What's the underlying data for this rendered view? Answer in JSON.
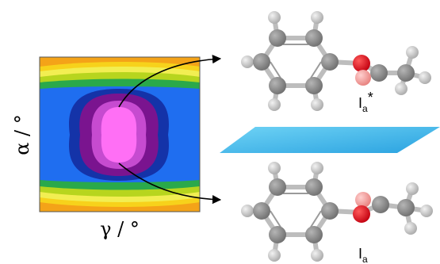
{
  "axes": {
    "y_label": "α / °",
    "x_label": "γ / °"
  },
  "molecules": [
    {
      "base": "I",
      "subscript": "a",
      "suffix": "*"
    },
    {
      "base": "I",
      "subscript": "a",
      "suffix": ""
    }
  ],
  "contour_colors": [
    "#f4a318",
    "#f7d21b",
    "#f2ee52",
    "#b7d51e",
    "#2aa94b",
    "#1f6ef0",
    "#1433a8",
    "#7a148f",
    "#c64bd0",
    "#ff6ff5"
  ],
  "plane_color": "#44c1f0",
  "atom_colors": {
    "carbon": "#8b8b8b",
    "hydrogen": "#cfcfcf",
    "oxygen": "#e3081e",
    "oxygen_light": "#f49d9b"
  }
}
